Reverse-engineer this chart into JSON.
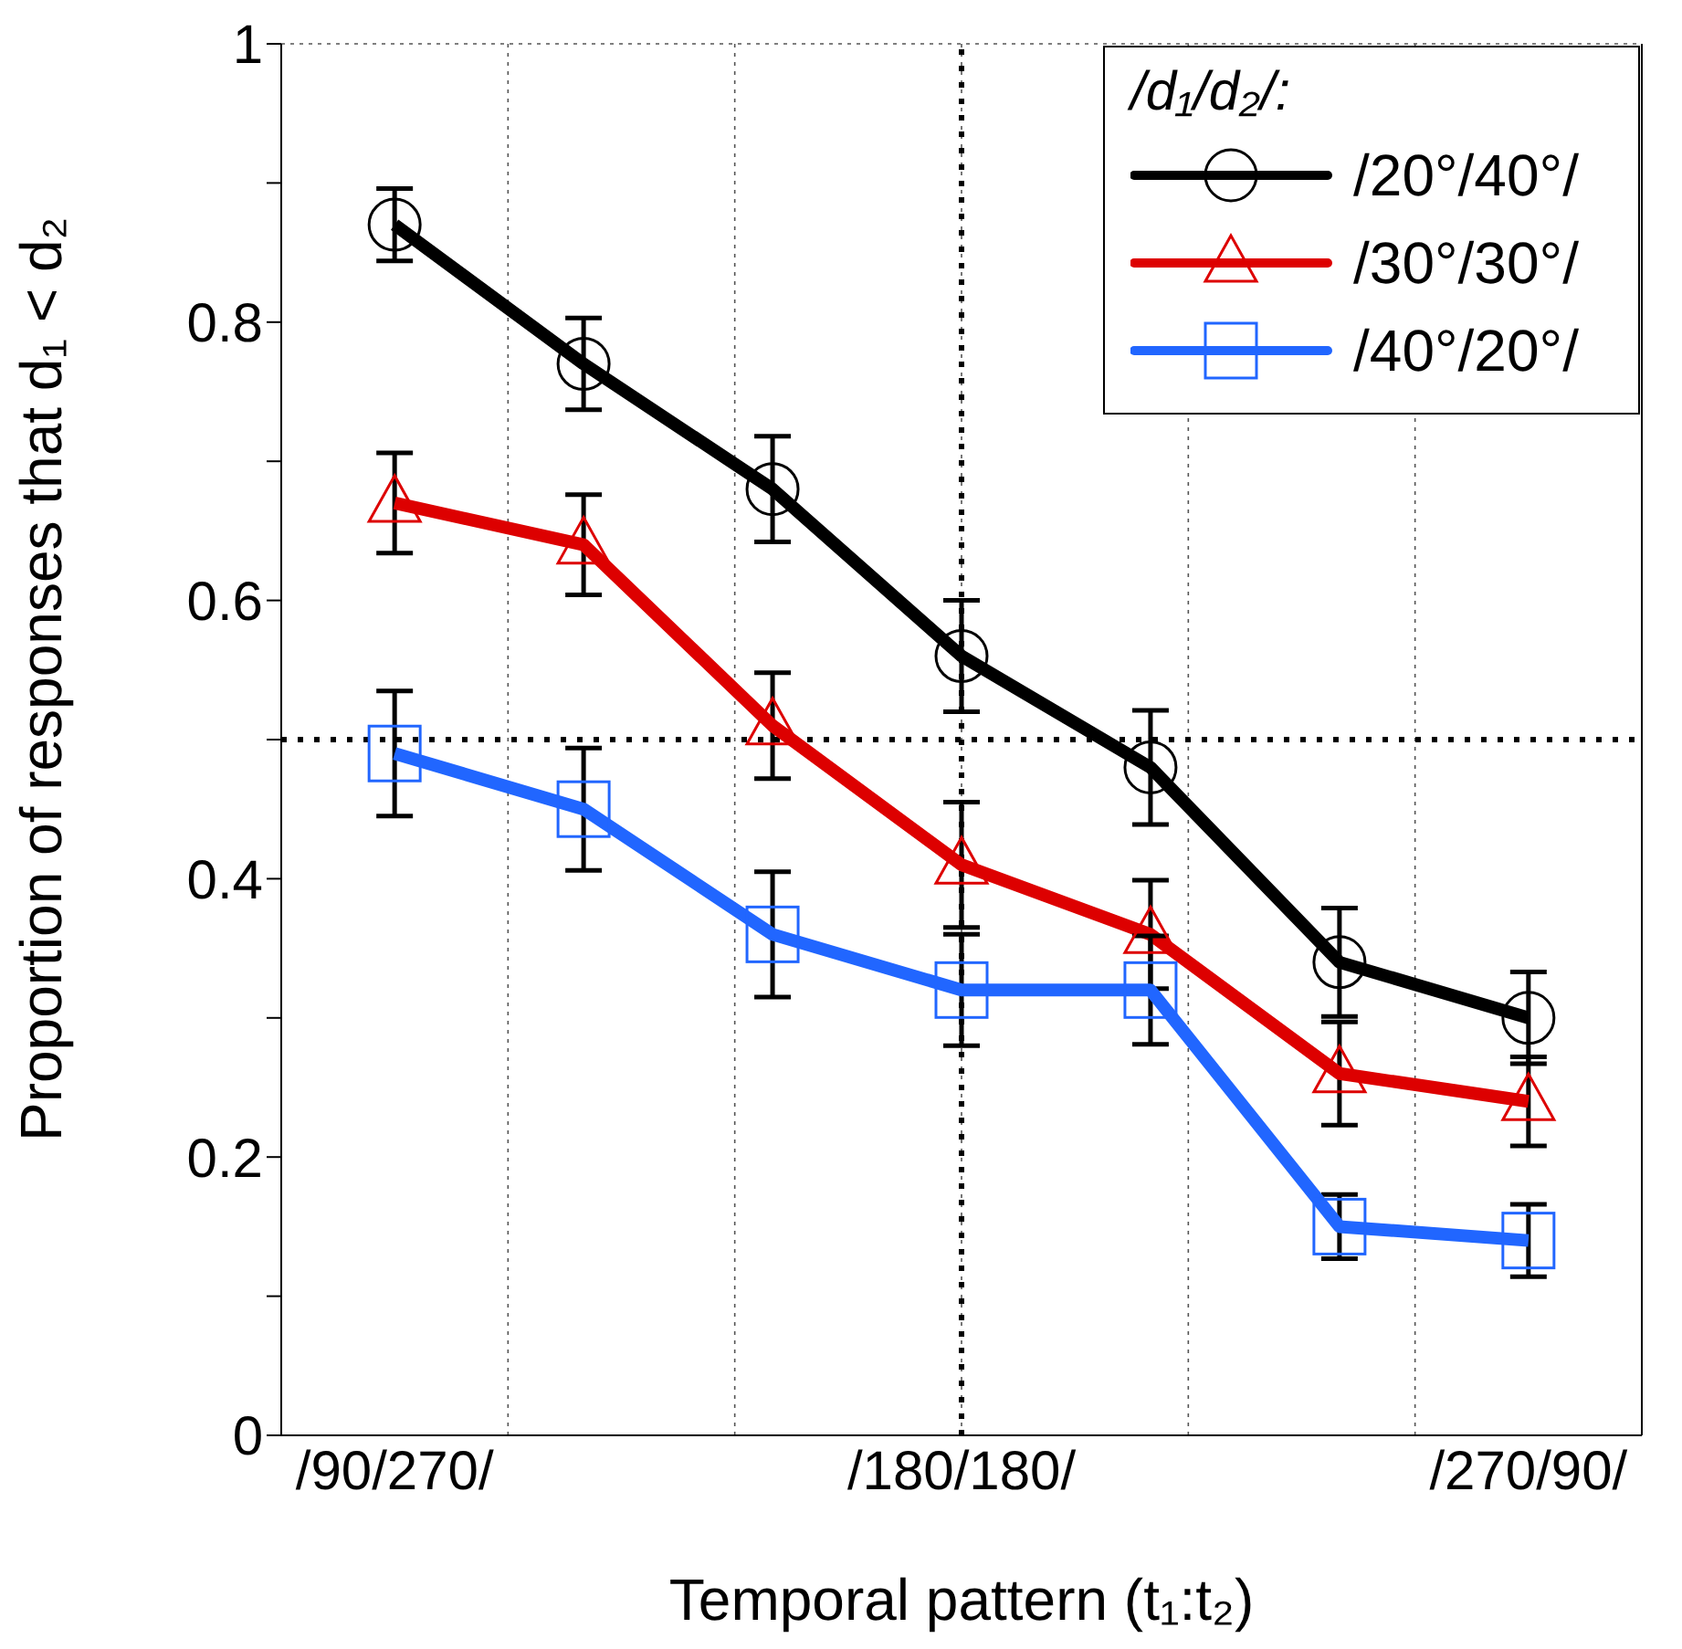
{
  "chart_data": {
    "type": "line",
    "xlabel": "Temporal pattern (t₁:t₂)",
    "ylabel": "Proportion of responses that d₁ < d₂",
    "legend_title": "/d₁/d₂/:",
    "categories": [
      "/90/270/",
      null,
      null,
      "/180/180/",
      null,
      null,
      "/270/90/"
    ],
    "series": [
      {
        "name": "/20°/40°/",
        "color": "#000000",
        "marker": "circle",
        "values": [
          0.87,
          0.77,
          0.68,
          0.56,
          0.48,
          0.34,
          0.3
        ],
        "errors": [
          0.026,
          0.033,
          0.038,
          0.04,
          0.041,
          0.039,
          0.033
        ]
      },
      {
        "name": "/30°/30°/",
        "color": "#dd0000",
        "marker": "triangle",
        "values": [
          0.67,
          0.64,
          0.51,
          0.41,
          0.36,
          0.26,
          0.24
        ],
        "errors": [
          0.036,
          0.036,
          0.038,
          0.045,
          0.039,
          0.037,
          0.032
        ]
      },
      {
        "name": "/40°/20°/",
        "color": "#2166ff",
        "marker": "square",
        "values": [
          0.49,
          0.45,
          0.36,
          0.32,
          0.32,
          0.15,
          0.14
        ],
        "errors": [
          0.045,
          0.044,
          0.045,
          0.04,
          0.039,
          0.023,
          0.026
        ]
      }
    ],
    "ylim": [
      0,
      1
    ],
    "yticks": [
      0,
      {
        "value": 0.1,
        "label": null
      },
      0.2,
      {
        "value": 0.3,
        "label": null
      },
      0.4,
      {
        "value": 0.5,
        "label": null
      },
      0.6,
      {
        "value": 0.7,
        "label": null
      },
      0.8,
      {
        "value": 0.9,
        "label": null
      },
      1
    ],
    "ref_lines": [
      {
        "axis": "y",
        "value": 0.5,
        "line_style": "dotted"
      },
      {
        "axis": "x",
        "value": "/180/180/",
        "line_style": "dotted"
      }
    ],
    "grid": true,
    "legend": "top right",
    "line_style": "solid"
  }
}
